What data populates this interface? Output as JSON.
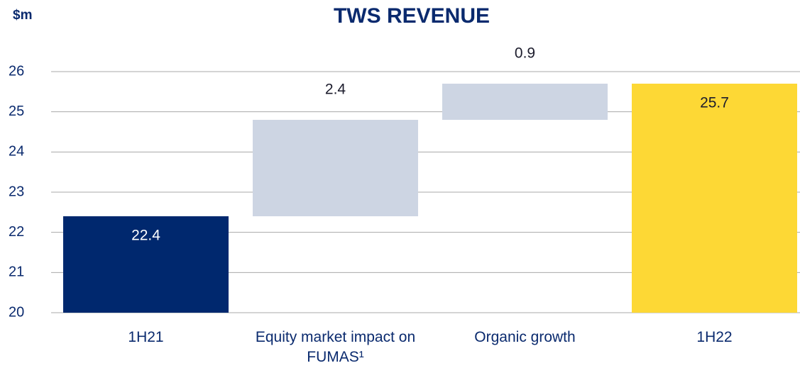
{
  "chart_data": {
    "type": "waterfall",
    "title": "TWS REVENUE",
    "y_axis_label": "$m",
    "categories": [
      "1H21",
      "Equity market impact on FUMAS¹",
      "Organic growth",
      "1H22"
    ],
    "values": [
      22.4,
      2.4,
      0.9,
      25.7
    ],
    "measures": [
      "absolute",
      "relative",
      "relative",
      "total"
    ],
    "colors": [
      "#00286e",
      "#cdd5e3",
      "#cdd5e3",
      "#fdd835"
    ],
    "ylim": [
      20,
      26
    ],
    "yticks": [
      20,
      21,
      22,
      23,
      24,
      25,
      26
    ],
    "grid": true
  }
}
